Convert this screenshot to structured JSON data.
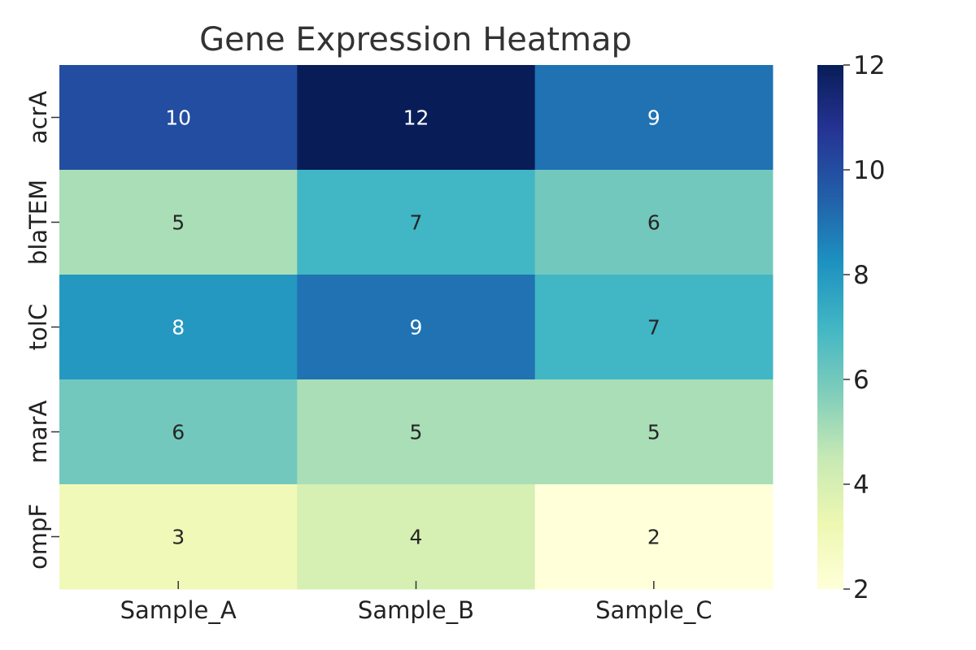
{
  "chart_data": {
    "type": "heatmap",
    "title": "Gene Expression Heatmap",
    "columns": [
      "Sample_A",
      "Sample_B",
      "Sample_C"
    ],
    "rows": [
      "acrA",
      "blaTEM",
      "tolC",
      "marA",
      "ompF"
    ],
    "values": [
      [
        10,
        12,
        9
      ],
      [
        5,
        7,
        6
      ],
      [
        8,
        9,
        7
      ],
      [
        6,
        5,
        5
      ],
      [
        3,
        4,
        2
      ]
    ],
    "annotations_shown": true,
    "colormap": "YlGnBu",
    "colorbar": {
      "range": [
        2,
        12
      ],
      "ticks": [
        2,
        4,
        6,
        8,
        10,
        12
      ]
    }
  }
}
